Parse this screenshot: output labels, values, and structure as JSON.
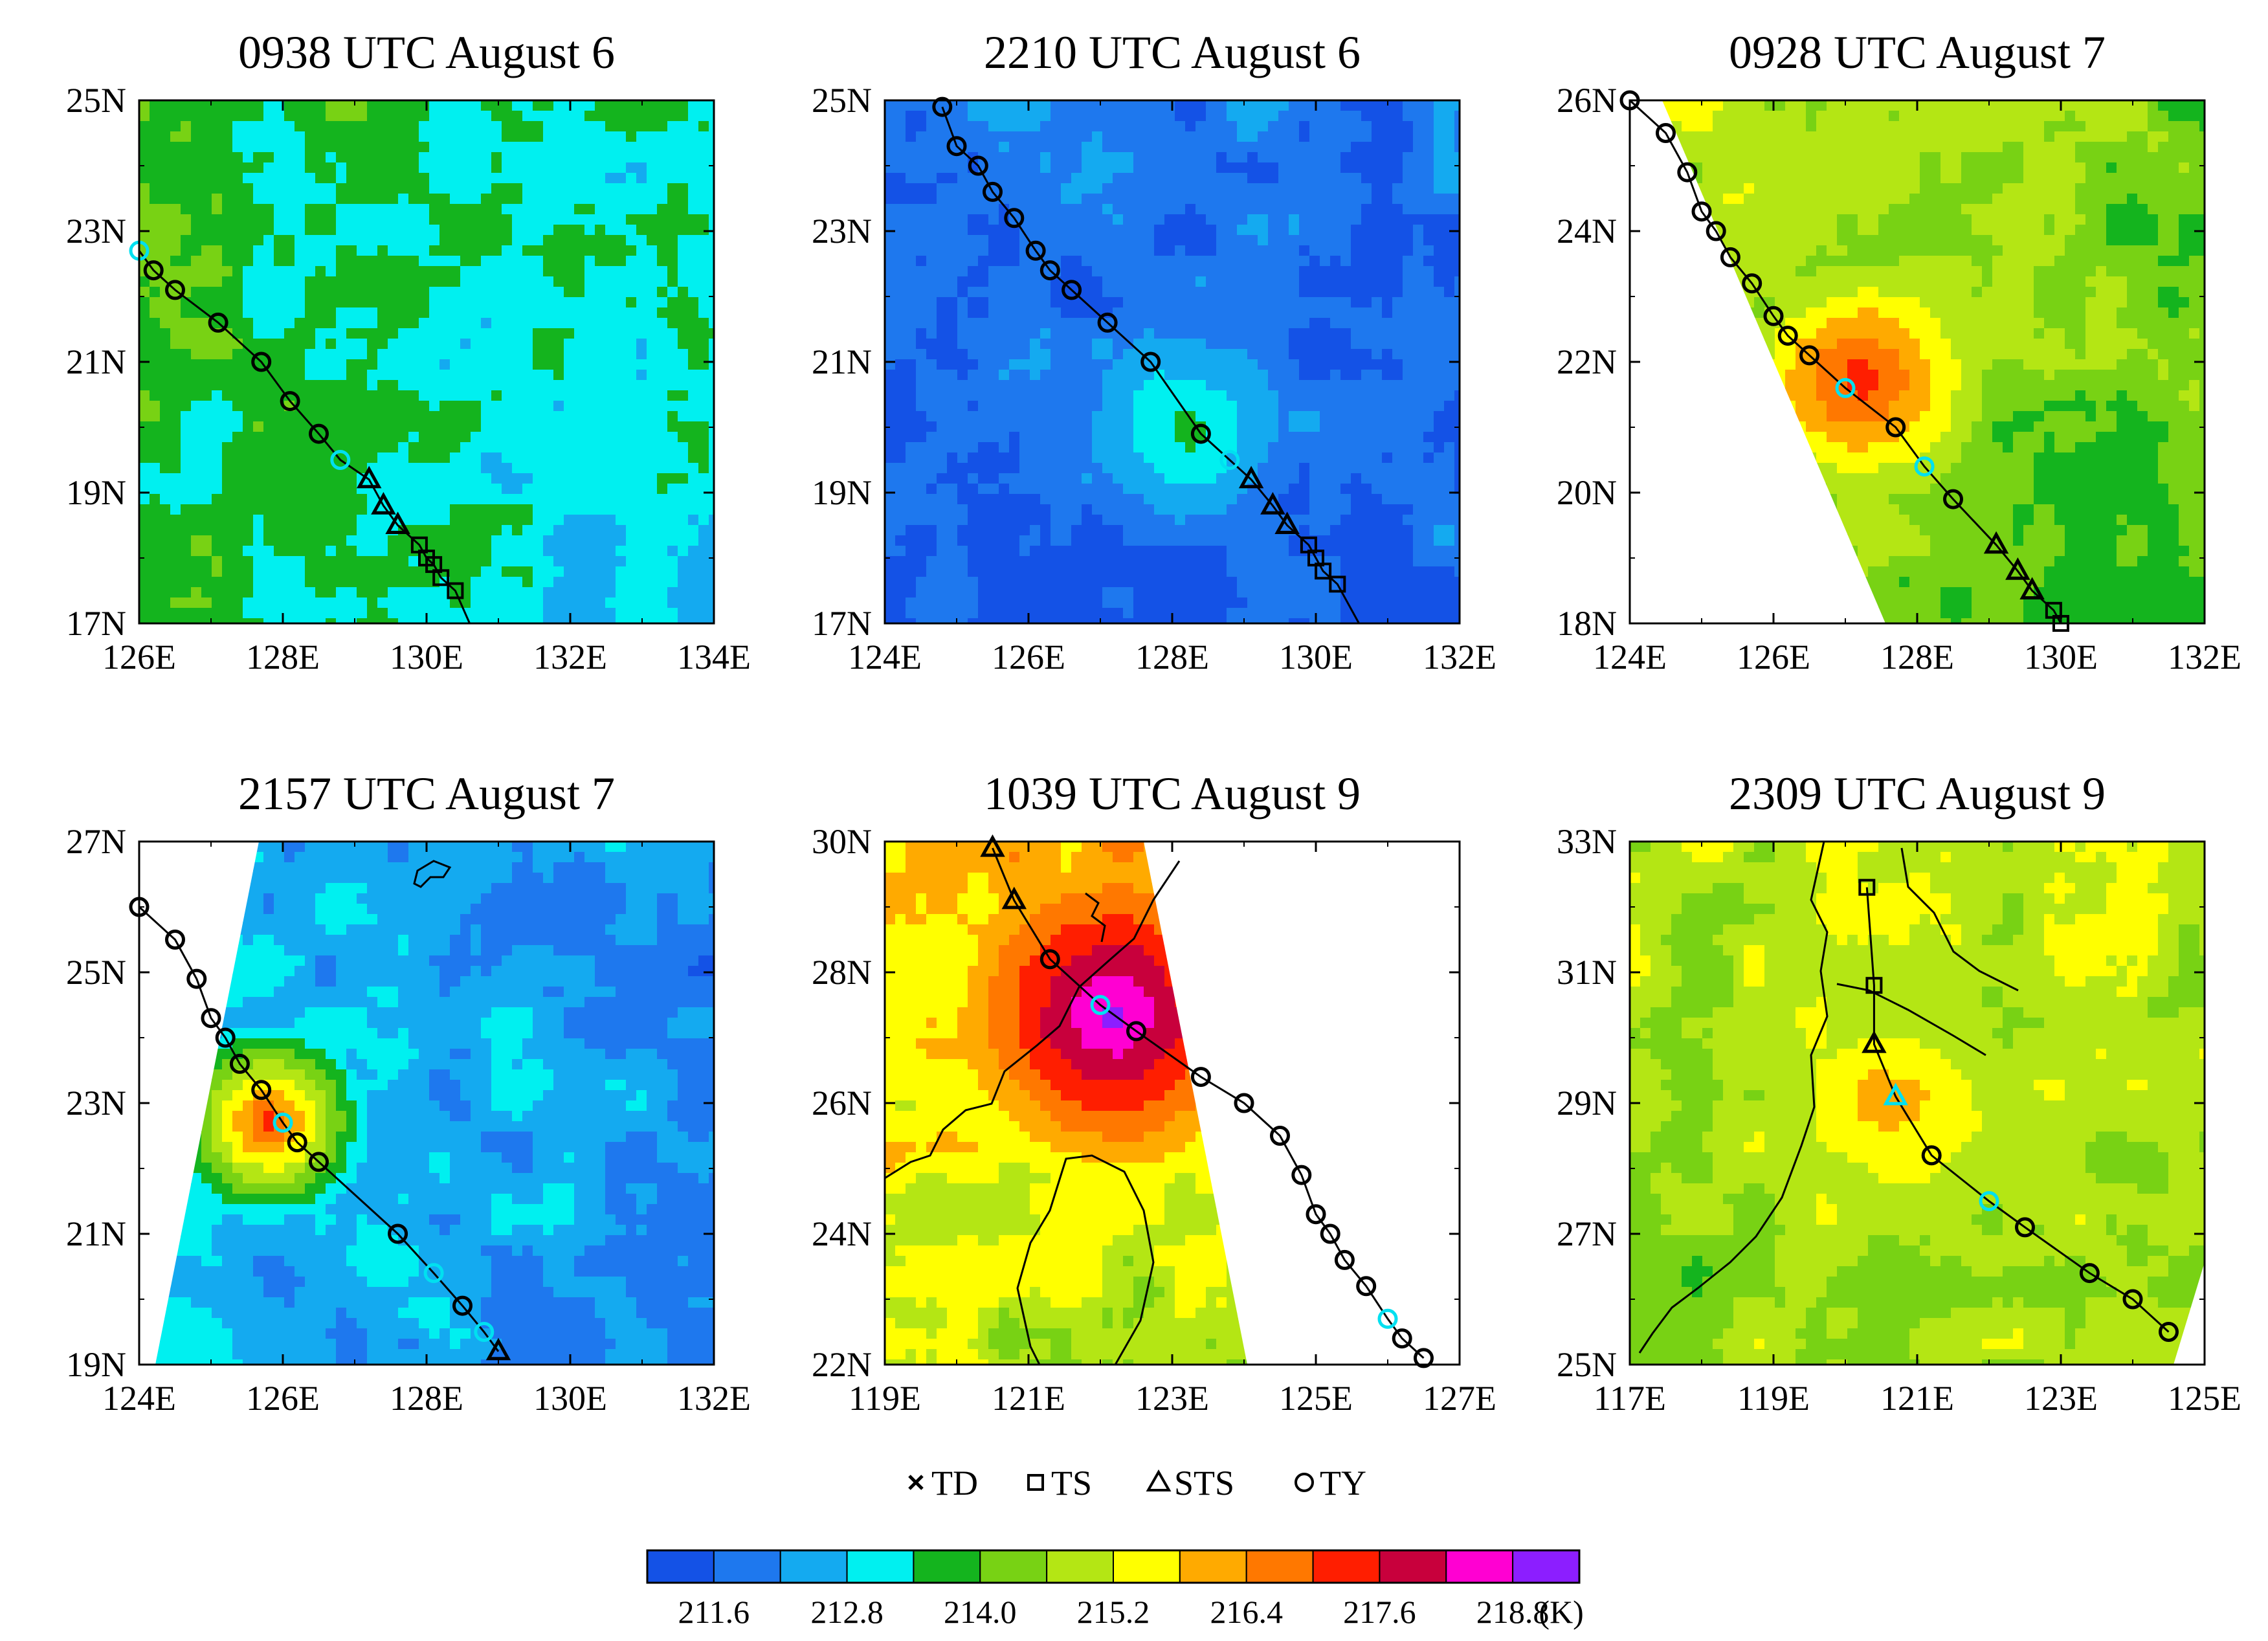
{
  "panels": [
    {
      "title": "0938 UTC August 6",
      "lon": [
        126,
        134
      ],
      "lat": [
        17,
        25
      ],
      "lon_ticks": [
        "126E",
        "128E",
        "130E",
        "132E",
        "134E"
      ],
      "lat_ticks": [
        "17N",
        "19N",
        "21N",
        "23N",
        "25N"
      ],
      "warm": {
        "lon": 128.6,
        "lat": 19.7,
        "level": 4
      },
      "background_level": 3,
      "track": [
        {
          "lon": 126.0,
          "lat": 22.7,
          "s": "TY",
          "cur": true
        },
        {
          "lon": 126.2,
          "lat": 22.4,
          "s": "TY"
        },
        {
          "lon": 126.5,
          "lat": 22.1,
          "s": "TY"
        },
        {
          "lon": 127.1,
          "lat": 21.6,
          "s": "TY"
        },
        {
          "lon": 127.7,
          "lat": 21.0,
          "s": "TY"
        },
        {
          "lon": 128.1,
          "lat": 20.4,
          "s": "TY"
        },
        {
          "lon": 128.5,
          "lat": 19.9,
          "s": "TY"
        },
        {
          "lon": 128.8,
          "lat": 19.5,
          "s": "TY",
          "cur": true
        },
        {
          "lon": 129.2,
          "lat": 19.2,
          "s": "STS"
        },
        {
          "lon": 129.4,
          "lat": 18.8,
          "s": "STS"
        },
        {
          "lon": 129.6,
          "lat": 18.5,
          "s": "STS"
        },
        {
          "lon": 129.9,
          "lat": 18.2,
          "s": "TS"
        },
        {
          "lon": 130.0,
          "lat": 18.0,
          "s": "TS"
        },
        {
          "lon": 130.1,
          "lat": 17.9,
          "s": "TS"
        },
        {
          "lon": 130.2,
          "lat": 17.7,
          "s": "TS"
        },
        {
          "lon": 130.4,
          "lat": 17.5,
          "s": "TS"
        },
        {
          "lon": 130.6,
          "lat": 17.0,
          "s": "none"
        }
      ]
    },
    {
      "title": "2210 UTC August 6",
      "lon": [
        124,
        132
      ],
      "lat": [
        17,
        25
      ],
      "lon_ticks": [
        "124E",
        "126E",
        "128E",
        "130E",
        "132E"
      ],
      "lat_ticks": [
        "17N",
        "19N",
        "21N",
        "23N",
        "25N"
      ],
      "warm": {
        "lon": 128.2,
        "lat": 20.0,
        "level": 4
      },
      "background_level": 1,
      "track": [
        {
          "lon": 124.8,
          "lat": 24.9,
          "s": "TY"
        },
        {
          "lon": 125.0,
          "lat": 24.3,
          "s": "TY"
        },
        {
          "lon": 125.3,
          "lat": 24.0,
          "s": "TY"
        },
        {
          "lon": 125.5,
          "lat": 23.6,
          "s": "TY"
        },
        {
          "lon": 125.8,
          "lat": 23.2,
          "s": "TY"
        },
        {
          "lon": 126.1,
          "lat": 22.7,
          "s": "TY"
        },
        {
          "lon": 126.3,
          "lat": 22.4,
          "s": "TY"
        },
        {
          "lon": 126.6,
          "lat": 22.1,
          "s": "TY"
        },
        {
          "lon": 127.1,
          "lat": 21.6,
          "s": "TY"
        },
        {
          "lon": 127.7,
          "lat": 21.0,
          "s": "TY"
        },
        {
          "lon": 128.4,
          "lat": 19.9,
          "s": "TY"
        },
        {
          "lon": 128.8,
          "lat": 19.5,
          "s": "TY",
          "cur": true
        },
        {
          "lon": 129.1,
          "lat": 19.2,
          "s": "STS"
        },
        {
          "lon": 129.4,
          "lat": 18.8,
          "s": "STS"
        },
        {
          "lon": 129.6,
          "lat": 18.5,
          "s": "STS"
        },
        {
          "lon": 129.9,
          "lat": 18.2,
          "s": "TS"
        },
        {
          "lon": 130.0,
          "lat": 18.0,
          "s": "TS"
        },
        {
          "lon": 130.1,
          "lat": 17.8,
          "s": "TS"
        },
        {
          "lon": 130.3,
          "lat": 17.6,
          "s": "TS"
        },
        {
          "lon": 130.6,
          "lat": 17.0,
          "s": "none"
        }
      ]
    },
    {
      "title": "0928 UTC August 7",
      "lon": [
        124,
        132
      ],
      "lat": [
        18,
        26
      ],
      "lon_ticks": [
        "124E",
        "126E",
        "128E",
        "130E",
        "132E"
      ],
      "lat_ticks": [
        "18N",
        "20N",
        "22N",
        "24N",
        "26N"
      ],
      "warm": {
        "lon": 127.2,
        "lat": 21.7,
        "level": 10
      },
      "background_level": 6,
      "swath": "left",
      "track": [
        {
          "lon": 124.0,
          "lat": 26.0,
          "s": "TY"
        },
        {
          "lon": 124.5,
          "lat": 25.5,
          "s": "TY"
        },
        {
          "lon": 124.8,
          "lat": 24.9,
          "s": "TY"
        },
        {
          "lon": 125.0,
          "lat": 24.3,
          "s": "TY"
        },
        {
          "lon": 125.2,
          "lat": 24.0,
          "s": "TY"
        },
        {
          "lon": 125.4,
          "lat": 23.6,
          "s": "TY"
        },
        {
          "lon": 125.7,
          "lat": 23.2,
          "s": "TY"
        },
        {
          "lon": 126.0,
          "lat": 22.7,
          "s": "TY"
        },
        {
          "lon": 126.2,
          "lat": 22.4,
          "s": "TY"
        },
        {
          "lon": 126.5,
          "lat": 22.1,
          "s": "TY"
        },
        {
          "lon": 127.0,
          "lat": 21.6,
          "s": "TY",
          "cur": true
        },
        {
          "lon": 127.7,
          "lat": 21.0,
          "s": "TY"
        },
        {
          "lon": 128.1,
          "lat": 20.4,
          "s": "TY",
          "cur": true
        },
        {
          "lon": 128.5,
          "lat": 19.9,
          "s": "TY"
        },
        {
          "lon": 129.1,
          "lat": 19.2,
          "s": "STS"
        },
        {
          "lon": 129.4,
          "lat": 18.8,
          "s": "STS"
        },
        {
          "lon": 129.6,
          "lat": 18.5,
          "s": "STS"
        },
        {
          "lon": 129.9,
          "lat": 18.2,
          "s": "TS"
        },
        {
          "lon": 130.0,
          "lat": 18.0,
          "s": "TS"
        }
      ]
    },
    {
      "title": "2157 UTC August 7",
      "lon": [
        124,
        132
      ],
      "lat": [
        19,
        27
      ],
      "lon_ticks": [
        "124E",
        "126E",
        "128E",
        "130E",
        "132E"
      ],
      "lat_ticks": [
        "19N",
        "21N",
        "23N",
        "25N",
        "27N"
      ],
      "warm": {
        "lon": 125.8,
        "lat": 22.7,
        "level": 10
      },
      "background_level": 2,
      "swath": "left",
      "track": [
        {
          "lon": 124.0,
          "lat": 26.0,
          "s": "TY"
        },
        {
          "lon": 124.5,
          "lat": 25.5,
          "s": "TY"
        },
        {
          "lon": 124.8,
          "lat": 24.9,
          "s": "TY"
        },
        {
          "lon": 125.0,
          "lat": 24.3,
          "s": "TY"
        },
        {
          "lon": 125.2,
          "lat": 24.0,
          "s": "TY"
        },
        {
          "lon": 125.4,
          "lat": 23.6,
          "s": "TY"
        },
        {
          "lon": 125.7,
          "lat": 23.2,
          "s": "TY"
        },
        {
          "lon": 126.0,
          "lat": 22.7,
          "s": "TY",
          "cur": true
        },
        {
          "lon": 126.2,
          "lat": 22.4,
          "s": "TY"
        },
        {
          "lon": 126.5,
          "lat": 22.1,
          "s": "TY"
        },
        {
          "lon": 127.6,
          "lat": 21.0,
          "s": "TY"
        },
        {
          "lon": 128.1,
          "lat": 20.4,
          "s": "TY",
          "cur": true
        },
        {
          "lon": 128.5,
          "lat": 19.9,
          "s": "TY"
        },
        {
          "lon": 128.8,
          "lat": 19.5,
          "s": "TY",
          "cur": true
        },
        {
          "lon": 129.0,
          "lat": 19.2,
          "s": "STS"
        }
      ]
    },
    {
      "title": "1039 UTC August 9",
      "lon": [
        119,
        127
      ],
      "lat": [
        22,
        30
      ],
      "lon_ticks": [
        "119E",
        "121E",
        "123E",
        "125E",
        "127E"
      ],
      "lat_ticks": [
        "22N",
        "24N",
        "26N",
        "28N",
        "30N"
      ],
      "warm": {
        "lon": 122.2,
        "lat": 27.4,
        "level": 13
      },
      "background_level": 7,
      "swath": "right",
      "track": [
        {
          "lon": 120.5,
          "lat": 29.9,
          "s": "STS"
        },
        {
          "lon": 120.8,
          "lat": 29.1,
          "s": "STS"
        },
        {
          "lon": 121.3,
          "lat": 28.2,
          "s": "TY"
        },
        {
          "lon": 122.0,
          "lat": 27.5,
          "s": "TY",
          "cur": true
        },
        {
          "lon": 122.5,
          "lat": 27.1,
          "s": "TY"
        },
        {
          "lon": 123.4,
          "lat": 26.4,
          "s": "TY"
        },
        {
          "lon": 124.0,
          "lat": 26.0,
          "s": "TY"
        },
        {
          "lon": 124.5,
          "lat": 25.5,
          "s": "TY"
        },
        {
          "lon": 124.8,
          "lat": 24.9,
          "s": "TY"
        },
        {
          "lon": 125.0,
          "lat": 24.3,
          "s": "TY"
        },
        {
          "lon": 125.2,
          "lat": 24.0,
          "s": "TY"
        },
        {
          "lon": 125.4,
          "lat": 23.6,
          "s": "TY"
        },
        {
          "lon": 125.7,
          "lat": 23.2,
          "s": "TY"
        },
        {
          "lon": 126.0,
          "lat": 22.7,
          "s": "TY",
          "cur": true
        },
        {
          "lon": 126.2,
          "lat": 22.4,
          "s": "TY"
        },
        {
          "lon": 126.5,
          "lat": 22.1,
          "s": "TY"
        }
      ]
    },
    {
      "title": "2309 UTC August 9",
      "lon": [
        117,
        125
      ],
      "lat": [
        25,
        33
      ],
      "lon_ticks": [
        "117E",
        "119E",
        "121E",
        "123E",
        "125E"
      ],
      "lat_ticks": [
        "25N",
        "27N",
        "29N",
        "31N",
        "33N"
      ],
      "warm": {
        "lon": 120.7,
        "lat": 28.9,
        "level": 8
      },
      "background_level": 6,
      "track": [
        {
          "lon": 120.3,
          "lat": 32.3,
          "s": "TS"
        },
        {
          "lon": 120.4,
          "lat": 30.8,
          "s": "TS"
        },
        {
          "lon": 120.4,
          "lat": 29.9,
          "s": "STS"
        },
        {
          "lon": 120.7,
          "lat": 29.1,
          "s": "STS",
          "cur": true
        },
        {
          "lon": 121.2,
          "lat": 28.2,
          "s": "TY"
        },
        {
          "lon": 122.0,
          "lat": 27.5,
          "s": "TY",
          "cur": true
        },
        {
          "lon": 122.5,
          "lat": 27.1,
          "s": "TY"
        },
        {
          "lon": 123.4,
          "lat": 26.4,
          "s": "TY"
        },
        {
          "lon": 124.0,
          "lat": 26.0,
          "s": "TY"
        },
        {
          "lon": 124.5,
          "lat": 25.5,
          "s": "TY"
        }
      ]
    }
  ],
  "legend": [
    {
      "symbol": "x-mark",
      "label": "TD"
    },
    {
      "symbol": "square",
      "label": "TS"
    },
    {
      "symbol": "triangle",
      "label": "STS"
    },
    {
      "symbol": "circle",
      "label": "TY"
    }
  ],
  "colorbar": {
    "colors": [
      "#1452e6",
      "#1e78ee",
      "#14aaf0",
      "#00f0f0",
      "#14b41e",
      "#78d214",
      "#b4e614",
      "#ffff00",
      "#ffaa00",
      "#ff7800",
      "#ff1e00",
      "#c8003c",
      "#ff00d2",
      "#8c1eff"
    ],
    "labels": [
      "211.6",
      "212.8",
      "214.0",
      "215.2",
      "216.4",
      "217.6",
      "218.8"
    ],
    "unit": "(K)"
  },
  "colors": {
    "current_position": "#00e0f0",
    "track": "#000000",
    "missing": "#ffffff"
  }
}
